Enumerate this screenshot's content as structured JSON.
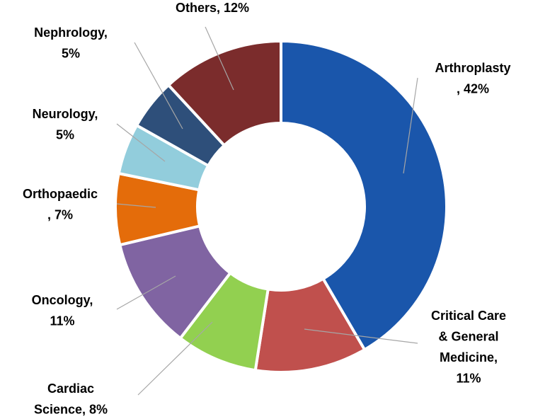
{
  "chart_data": {
    "type": "donut",
    "value_labels": [
      [
        "Arthroplasty",
        ", 42%"
      ],
      [
        "Critical Care",
        "& General",
        "Medicine,",
        "11%"
      ],
      [
        "Cardiac",
        "Science, 8%"
      ],
      [
        "Oncology,",
        "11%"
      ],
      [
        "Orthopaedic",
        ", 7%"
      ],
      [
        "Neurology,",
        "5%"
      ],
      [
        "Nephrology,",
        "5%"
      ],
      [
        "Others, 12%"
      ]
    ],
    "values": [
      42,
      11,
      8,
      11,
      7,
      5,
      5,
      12
    ],
    "colors": [
      "#1a56ab",
      "#c0504d",
      "#92d050",
      "#8064a2",
      "#e46c0a",
      "#92cddc",
      "#2e4f7a",
      "#7b2c2c"
    ]
  }
}
